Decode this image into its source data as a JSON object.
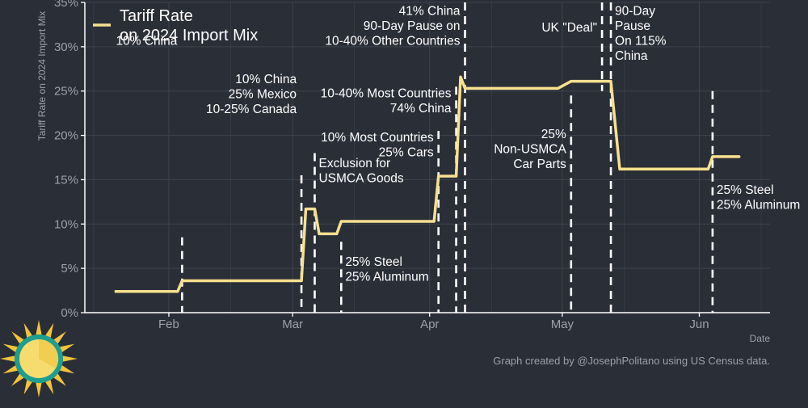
{
  "chart_data": {
    "type": "line",
    "title": "",
    "xlabel": "Date",
    "ylabel": "Tariff Rate on 2024 Import Mix",
    "ylim": [
      0,
      35
    ],
    "xlim": [
      "2025-01-13",
      "2025-06-17"
    ],
    "grid": true,
    "legend_position": "top-left",
    "y_ticks": [
      "0%",
      "5%",
      "10%",
      "15%",
      "20%",
      "25%",
      "30%",
      "35%"
    ],
    "x_ticks": [
      {
        "date": "2025-02-01",
        "label": "Feb"
      },
      {
        "date": "2025-03-01",
        "label": "Mar"
      },
      {
        "date": "2025-04-01",
        "label": "Apr"
      },
      {
        "date": "2025-05-01",
        "label": "May"
      },
      {
        "date": "2025-06-01",
        "label": "Jun"
      }
    ],
    "series": [
      {
        "name": "Tariff Rate\non 2024 Import Mix",
        "color": "#f7e08f",
        "points": [
          [
            "2025-01-20",
            2.4
          ],
          [
            "2025-02-03",
            2.4
          ],
          [
            "2025-02-04",
            3.6
          ],
          [
            "2025-03-03",
            3.6
          ],
          [
            "2025-03-04",
            11.7
          ],
          [
            "2025-03-05",
            11.7
          ],
          [
            "2025-03-06",
            11.7
          ],
          [
            "2025-03-07",
            8.9
          ],
          [
            "2025-03-11",
            8.9
          ],
          [
            "2025-03-12",
            10.3
          ],
          [
            "2025-04-02",
            10.3
          ],
          [
            "2025-04-03",
            15.4
          ],
          [
            "2025-04-07",
            15.4
          ],
          [
            "2025-04-08",
            26.6
          ],
          [
            "2025-04-09",
            25.3
          ],
          [
            "2025-04-30",
            25.3
          ],
          [
            "2025-05-03",
            26.1
          ],
          [
            "2025-05-10",
            26.1
          ],
          [
            "2025-05-12",
            26.1
          ],
          [
            "2025-05-14",
            16.2
          ],
          [
            "2025-06-03",
            16.2
          ],
          [
            "2025-06-04",
            17.6
          ],
          [
            "2025-06-10",
            17.6
          ]
        ]
      }
    ],
    "events": [
      {
        "date": "2025-02-04",
        "lines": [
          "10% China"
        ],
        "label_side": "left",
        "label_y": 31.3,
        "dash_top": 8.5,
        "dash_bottom": 0
      },
      {
        "date": "2025-03-03",
        "lines": [
          "10% China",
          "25% Mexico",
          "10-25% Canada"
        ],
        "label_side": "left",
        "label_y": 27.0,
        "dash_top": 15.5,
        "dash_bottom": 0
      },
      {
        "date": "2025-03-06",
        "lines": [
          "Exclusion for",
          "USMCA Goods"
        ],
        "label_side": "right",
        "label_y": 17.5,
        "dash_top": 18.0,
        "dash_bottom": 0
      },
      {
        "date": "2025-03-12",
        "lines": [
          "25% Steel",
          "25% Aluminum"
        ],
        "label_side": "right",
        "label_y": 6.4,
        "dash_top": 8.0,
        "dash_bottom": 0
      },
      {
        "date": "2025-04-03",
        "lines": [
          "10% Most Countries",
          "25% Cars"
        ],
        "label_side": "left",
        "label_y": 20.4,
        "dash_top": 20.5,
        "dash_bottom": 0
      },
      {
        "date": "2025-04-07",
        "lines": [
          "10-40% Most Countries",
          "74% China"
        ],
        "label_side": "left",
        "label_y": 25.4,
        "dash_top": 25.5,
        "dash_bottom": 0
      },
      {
        "date": "2025-04-09",
        "lines": [
          "41% China",
          "90-Day Pause on",
          "10-40% Other Countries"
        ],
        "label_side": "left",
        "label_y": 34.7,
        "dash_top": 35.0,
        "dash_bottom": 0
      },
      {
        "date": "2025-05-03",
        "lines": [
          "25%",
          "Non-USMCA",
          "Car Parts"
        ],
        "label_side": "left",
        "label_y": 20.8,
        "dash_top": 24.5,
        "dash_bottom": 0
      },
      {
        "date": "2025-05-10",
        "lines": [
          "UK \"Deal\""
        ],
        "label_side": "left",
        "label_y": 32.8,
        "dash_top": 35.0,
        "dash_bottom": 25.0
      },
      {
        "date": "2025-05-12",
        "lines": [
          "90-Day",
          "Pause",
          "On 115%",
          "China"
        ],
        "label_side": "right",
        "label_y": 34.7,
        "dash_top": 35.0,
        "dash_bottom": 0
      },
      {
        "date": "2025-06-04",
        "lines": [
          "25% Steel",
          "25% Aluminum"
        ],
        "label_side": "right",
        "label_y": 14.5,
        "dash_top": 25.0,
        "dash_bottom": 0
      }
    ],
    "credit": "Graph created by @JosephPolitano using US Census data."
  },
  "colors": {
    "background": "#2a2e37",
    "grid": "#3e434d",
    "axis": "#ffffff",
    "line": "#f7e08f",
    "logo_teal": "#1e9e8f",
    "logo_sun": "#f6dc6f",
    "logo_rays": "#f3c33a"
  },
  "icons": {
    "logo": "sun-logo-icon"
  }
}
